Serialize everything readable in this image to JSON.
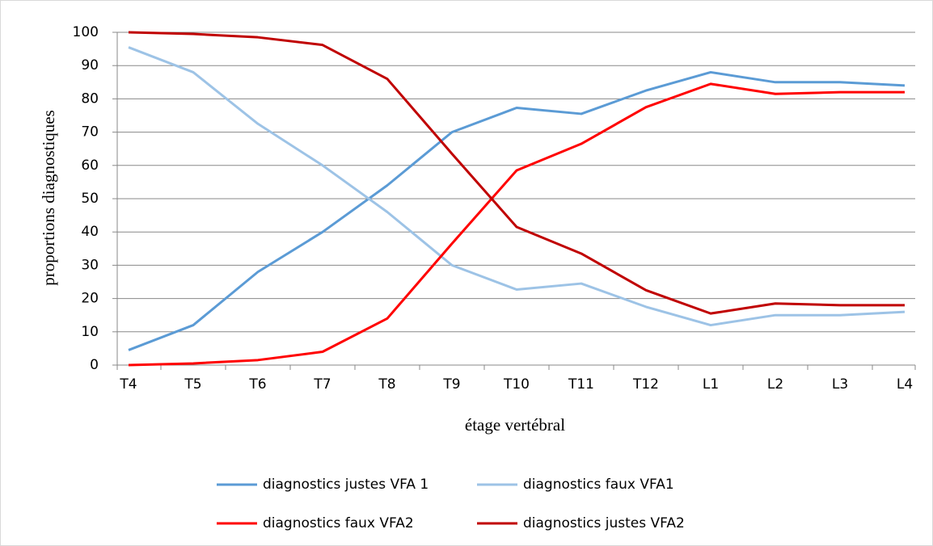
{
  "chart_data": {
    "type": "line",
    "x_label": "étage vertébral",
    "y_label": "proportions diagnostiques",
    "categories": [
      "T4",
      "T5",
      "T6",
      "T7",
      "T8",
      "T9",
      "T10",
      "T11",
      "T12",
      "L1",
      "L2",
      "L3",
      "L4"
    ],
    "series": [
      {
        "name": "diagnostics justes VFA 1",
        "color": "#5b9bd5",
        "values": [
          4.5,
          12,
          28,
          40,
          54,
          70,
          77.3,
          75.5,
          82.5,
          88,
          85,
          85,
          84
        ]
      },
      {
        "name": "diagnostics faux VFA1",
        "color": "#9dc3e6",
        "values": [
          95.5,
          88,
          72.5,
          60,
          46,
          30,
          22.7,
          24.5,
          17.5,
          12,
          15,
          15,
          16
        ]
      },
      {
        "name": "diagnostics faux VFA2",
        "color": "#ff0000",
        "values": [
          0,
          0.5,
          1.5,
          4,
          14,
          36.5,
          58.5,
          66.5,
          77.5,
          84.5,
          81.5,
          82,
          82
        ]
      },
      {
        "name": "diagnostics justes VFA2",
        "color": "#c00000",
        "values": [
          100,
          99.5,
          98.5,
          96.2,
          86,
          63.5,
          41.5,
          33.5,
          22.5,
          15.5,
          18.5,
          18,
          18
        ]
      }
    ],
    "ylim": [
      0,
      100
    ],
    "yticks": [
      0,
      10,
      20,
      30,
      40,
      50,
      60,
      70,
      80,
      90,
      100
    ],
    "grid": true
  }
}
